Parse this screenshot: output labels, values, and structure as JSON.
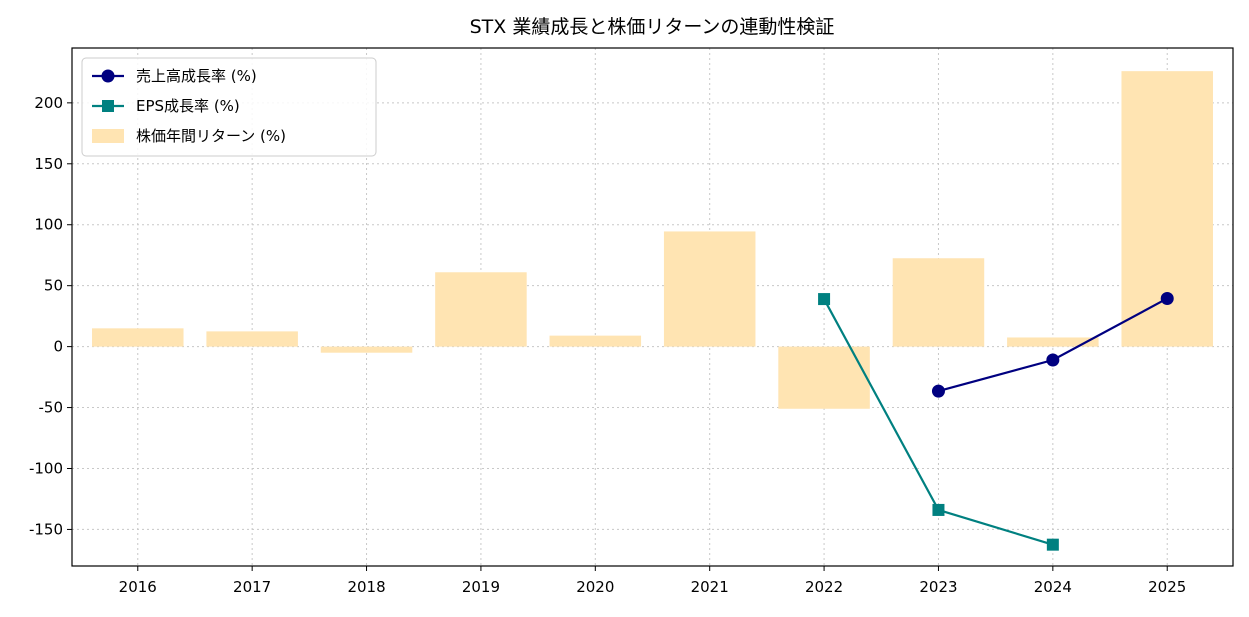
{
  "chart_data": {
    "type": "bar",
    "title": "STX 業績成長と株価リターンの連動性検証",
    "xlabel": "",
    "ylabel": "",
    "categories": [
      "2016",
      "2017",
      "2018",
      "2019",
      "2020",
      "2021",
      "2022",
      "2023",
      "2024",
      "2025"
    ],
    "ylim": [
      -180,
      245
    ],
    "yticks": [
      -150,
      -100,
      -50,
      0,
      50,
      100,
      150,
      200
    ],
    "grid": true,
    "legend_position": "top-left",
    "series": [
      {
        "name": "売上高成長率 (%)",
        "kind": "line",
        "marker": "circle",
        "color": "#000080",
        "values": [
          null,
          null,
          null,
          null,
          null,
          null,
          null,
          -36.5,
          -11,
          39.5
        ]
      },
      {
        "name": "EPS成長率 (%)",
        "kind": "line",
        "marker": "square",
        "color": "#008080",
        "values": [
          null,
          null,
          null,
          null,
          null,
          null,
          39,
          -134,
          -162.5,
          null
        ]
      },
      {
        "name": "株価年間リターン (%)",
        "kind": "bar",
        "color": "#ffe4b2",
        "values": [
          15,
          12.5,
          -5,
          61,
          9,
          94.5,
          -51,
          72.5,
          7.5,
          226
        ]
      }
    ]
  }
}
